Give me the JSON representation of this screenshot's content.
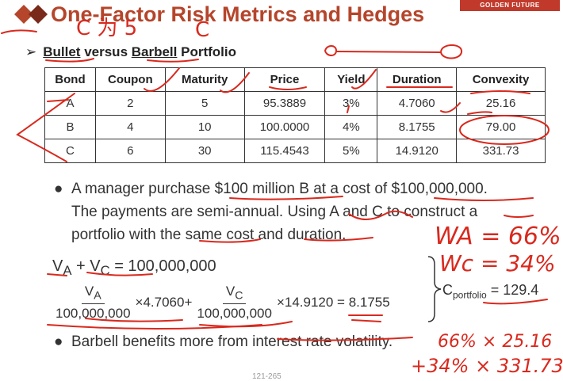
{
  "title": "One-Factor Risk Metrics and Hedges",
  "logo_text": "GOLDEN FUTURE",
  "subtitle": {
    "arrow": "➢",
    "text_bullet": "Bullet",
    "text_versus": " versus ",
    "text_barbell": "Barbell",
    "text_portfolio": " Portfolio"
  },
  "table": {
    "headers": [
      "Bond",
      "Coupon",
      "Maturity",
      "Price",
      "Yield",
      "Duration",
      "Convexity"
    ],
    "rows": [
      [
        "A",
        "2",
        "5",
        "95.3889",
        "3%",
        "4.7060",
        "25.16"
      ],
      [
        "B",
        "4",
        "10",
        "100.0000",
        "4%",
        "8.1755",
        "79.00"
      ],
      [
        "C",
        "6",
        "30",
        "115.4543",
        "5%",
        "14.9120",
        "331.73"
      ]
    ]
  },
  "bullet1": {
    "line1": "A manager purchase $100 million B at a cost of $100,000,000.",
    "line2": "The payments are semi-annual. Using A and C to construct a",
    "line3": "portfolio with the same cost and duration."
  },
  "equations": {
    "eq1": "V_A + V_C = 100,000,000",
    "va": "V",
    "va_sub": "A",
    "vc": "V",
    "vc_sub": "C",
    "den1": "100,000,000",
    "den2": "100,000,000",
    "times1": "×4.7060+",
    "times2": "×14.9120 = 8.1755"
  },
  "portfolio_convexity": {
    "label": "C",
    "sub": "portfolio",
    "value": "= 129.4"
  },
  "bullet2": "Barbell benefits more from interest rate volatility.",
  "page_number": "121-265",
  "handwriting": {
    "top_left": "C 为 5",
    "top_c": "C",
    "wa": "WA = 66%",
    "wc": "Wc = 34%",
    "calc1": "66% × 25.16",
    "calc2": "+34% × 331.73"
  },
  "colors": {
    "title": "#b5452b",
    "ink": "#d9291e",
    "logo": "#c0392b"
  }
}
